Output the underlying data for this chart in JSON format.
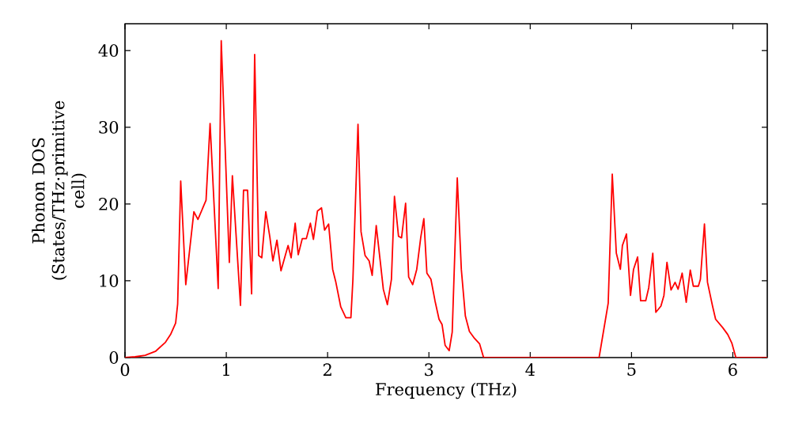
{
  "chart_data": {
    "type": "line",
    "xlabel": "Frequency (THz)",
    "ylabel": "Phonon DOS (States/THz·primitive cell)",
    "xlim": [
      0,
      6.34
    ],
    "ylim": [
      0,
      43.5
    ],
    "xticks": [
      0,
      1,
      2,
      3,
      4,
      5,
      6
    ],
    "yticks": [
      0,
      10,
      20,
      30,
      40
    ],
    "grid": false,
    "legend": false,
    "marker": "none",
    "line_style": "solid",
    "series": [
      {
        "color": "#ff0000",
        "x": [
          0,
          0.1,
          0.2,
          0.3,
          0.4,
          0.45,
          0.5,
          0.52,
          0.55,
          0.6,
          0.68,
          0.72,
          0.8,
          0.84,
          0.92,
          0.95,
          1.03,
          1.06,
          1.14,
          1.17,
          1.21,
          1.25,
          1.28,
          1.32,
          1.35,
          1.39,
          1.43,
          1.46,
          1.5,
          1.54,
          1.61,
          1.64,
          1.68,
          1.71,
          1.75,
          1.79,
          1.83,
          1.86,
          1.9,
          1.94,
          1.97,
          2.01,
          2.05,
          2.08,
          2.13,
          2.18,
          2.23,
          2.25,
          2.3,
          2.33,
          2.37,
          2.41,
          2.44,
          2.48,
          2.52,
          2.55,
          2.59,
          2.63,
          2.66,
          2.7,
          2.73,
          2.77,
          2.8,
          2.84,
          2.88,
          2.92,
          2.95,
          2.98,
          3.02,
          3.06,
          3.1,
          3.13,
          3.16,
          3.2,
          3.23,
          3.28,
          3.32,
          3.36,
          3.4,
          3.45,
          3.5,
          3.54,
          4.68,
          4.77,
          4.81,
          4.85,
          4.89,
          4.91,
          4.95,
          4.99,
          5.02,
          5.06,
          5.09,
          5.14,
          5.17,
          5.21,
          5.24,
          5.29,
          5.32,
          5.35,
          5.39,
          5.43,
          5.46,
          5.5,
          5.54,
          5.58,
          5.61,
          5.66,
          5.68,
          5.72,
          5.75,
          5.8,
          5.83,
          5.9,
          5.95,
          5.99,
          6.03,
          6.34
        ],
        "values": [
          0,
          0.1,
          0.3,
          0.8,
          2,
          3,
          4.5,
          7,
          23,
          9.5,
          19,
          18,
          20.5,
          30.5,
          9,
          41.3,
          12.4,
          23.7,
          6.8,
          21.8,
          21.8,
          8.3,
          39.5,
          13.3,
          13,
          19,
          15.7,
          12.6,
          15.3,
          11.3,
          14.6,
          13,
          17.5,
          13.4,
          15.5,
          15.5,
          17.5,
          15.4,
          19.1,
          19.5,
          16.6,
          17.4,
          11.5,
          9.9,
          6.6,
          5.2,
          5.2,
          10.2,
          30.4,
          16.4,
          13.3,
          12.6,
          10.7,
          17.2,
          12.5,
          8.9,
          6.9,
          10.2,
          21,
          15.8,
          15.6,
          20.1,
          10.5,
          9.5,
          11.5,
          15.7,
          18.1,
          11,
          10.2,
          7.4,
          5,
          4.3,
          1.6,
          0.9,
          3.3,
          23.4,
          11.5,
          5.4,
          3.4,
          2.5,
          1.8,
          0,
          0,
          7.1,
          23.9,
          13.6,
          11.5,
          14.6,
          16.1,
          8.1,
          11.5,
          13.1,
          7.4,
          7.4,
          9.1,
          13.6,
          5.9,
          6.7,
          8.1,
          12.4,
          8.8,
          9.8,
          8.9,
          11,
          7.2,
          11.4,
          9.3,
          9.3,
          10.2,
          17.4,
          9.8,
          6.7,
          5,
          3.9,
          3,
          1.9,
          0,
          0
        ]
      }
    ]
  }
}
